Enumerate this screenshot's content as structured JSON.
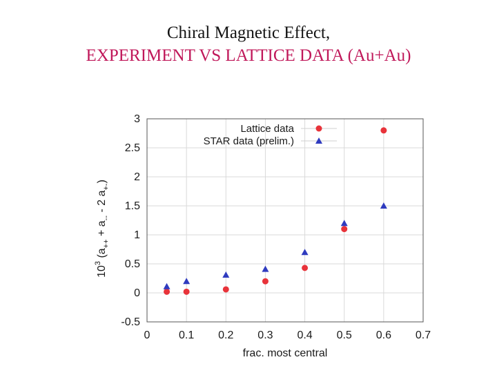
{
  "slide": {
    "title_line1": "Chiral Magnetic Effect,",
    "title_line2": "EXPERIMENT  VS LATTICE DATA (Au+Au)"
  },
  "colors": {
    "title_line1": "#141414",
    "title_line2": "#c0185a",
    "lattice": "#e8333a",
    "star": "#2f3bbf",
    "frame": "#555555",
    "grid": "#d9d9d9"
  },
  "chart_data": {
    "type": "scatter",
    "xlabel": "frac. most central",
    "ylabel_parts": [
      "10",
      "3",
      " (a",
      "++",
      " + a",
      "--",
      " - 2 a",
      "+-",
      ")"
    ],
    "xlim": [
      0,
      0.7
    ],
    "ylim": [
      -0.5,
      3
    ],
    "x_ticks": [
      "0",
      "0.1",
      "0.2",
      "0.3",
      "0.4",
      "0.5",
      "0.6",
      "0.7"
    ],
    "y_ticks": [
      "-0.5",
      "0",
      "0.5",
      "1",
      "1.5",
      "2",
      "2.5",
      "3"
    ],
    "grid": true,
    "legend_position": "top-right",
    "series": [
      {
        "name": "Lattice data",
        "marker": "circle",
        "x": [
          0.05,
          0.1,
          0.2,
          0.3,
          0.4,
          0.5,
          0.6
        ],
        "y": [
          0.02,
          0.02,
          0.06,
          0.2,
          0.43,
          1.1,
          2.8
        ]
      },
      {
        "name": "STAR data (prelim.)",
        "marker": "triangle",
        "x": [
          0.05,
          0.1,
          0.2,
          0.3,
          0.4,
          0.5,
          0.6
        ],
        "y": [
          0.11,
          0.2,
          0.31,
          0.41,
          0.7,
          1.2,
          1.5
        ]
      }
    ]
  }
}
